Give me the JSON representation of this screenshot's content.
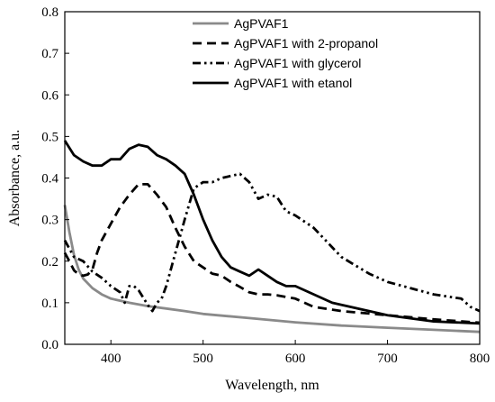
{
  "chart_data": {
    "type": "line",
    "title": "",
    "xlabel": "Wavelength, nm",
    "ylabel": "Absorbance, a.u.",
    "xlim": [
      350,
      800
    ],
    "ylim": [
      0.0,
      0.8
    ],
    "x_ticks": [
      400,
      500,
      600,
      700,
      800
    ],
    "y_ticks": [
      0.0,
      0.1,
      0.2,
      0.3,
      0.4,
      0.5,
      0.6,
      0.7,
      0.8
    ],
    "x_tick_labels": [
      "400",
      "500",
      "600",
      "700",
      "800"
    ],
    "y_tick_labels": [
      "0.0",
      "0.1",
      "0.2",
      "0.3",
      "0.4",
      "0.5",
      "0.6",
      "0.7",
      "0.8"
    ],
    "grid": false,
    "legend_position": "top-right",
    "series": [
      {
        "name": "AgPVAF1",
        "color": "#8a8a8a",
        "dash": "solid",
        "x": [
          350,
          355,
          360,
          365,
          370,
          380,
          390,
          400,
          420,
          440,
          460,
          480,
          500,
          550,
          600,
          650,
          700,
          750,
          800
        ],
        "y": [
          0.335,
          0.27,
          0.215,
          0.18,
          0.158,
          0.135,
          0.12,
          0.11,
          0.1,
          0.092,
          0.086,
          0.08,
          0.073,
          0.063,
          0.053,
          0.045,
          0.04,
          0.035,
          0.03
        ]
      },
      {
        "name": "AgPVAF1 with  2-propanol",
        "color": "#000000",
        "dash": "dash",
        "x": [
          350,
          355,
          360,
          365,
          370,
          375,
          380,
          385,
          390,
          400,
          410,
          420,
          430,
          440,
          450,
          460,
          470,
          480,
          490,
          500,
          510,
          520,
          530,
          540,
          550,
          560,
          570,
          580,
          600,
          620,
          650,
          700,
          750,
          800
        ],
        "y": [
          0.22,
          0.2,
          0.178,
          0.168,
          0.165,
          0.168,
          0.18,
          0.22,
          0.25,
          0.29,
          0.33,
          0.36,
          0.385,
          0.385,
          0.36,
          0.33,
          0.28,
          0.235,
          0.2,
          0.185,
          0.17,
          0.165,
          0.15,
          0.138,
          0.125,
          0.12,
          0.12,
          0.118,
          0.11,
          0.09,
          0.08,
          0.07,
          0.06,
          0.052
        ]
      },
      {
        "name": "AgPVAF1 with glycerol",
        "color": "#000000",
        "dash": "dashdotdot",
        "x": [
          350,
          355,
          360,
          370,
          380,
          390,
          400,
          410,
          415,
          420,
          425,
          430,
          440,
          445,
          450,
          455,
          460,
          465,
          470,
          480,
          490,
          500,
          510,
          520,
          530,
          540,
          550,
          560,
          570,
          580,
          590,
          600,
          620,
          650,
          680,
          700,
          750,
          780,
          790,
          800
        ],
        "y": [
          0.25,
          0.23,
          0.21,
          0.2,
          0.175,
          0.16,
          0.14,
          0.125,
          0.1,
          0.14,
          0.14,
          0.13,
          0.095,
          0.08,
          0.1,
          0.11,
          0.14,
          0.18,
          0.22,
          0.3,
          0.375,
          0.39,
          0.39,
          0.4,
          0.405,
          0.41,
          0.39,
          0.35,
          0.36,
          0.355,
          0.32,
          0.31,
          0.28,
          0.21,
          0.17,
          0.15,
          0.12,
          0.11,
          0.09,
          0.08
        ]
      },
      {
        "name": "AgPVAF1 with etanol",
        "color": "#000000",
        "dash": "solid",
        "x": [
          350,
          360,
          370,
          380,
          390,
          400,
          410,
          420,
          430,
          440,
          450,
          460,
          470,
          480,
          490,
          500,
          510,
          520,
          530,
          540,
          550,
          560,
          570,
          580,
          590,
          600,
          620,
          640,
          660,
          700,
          750,
          800
        ],
        "y": [
          0.49,
          0.455,
          0.44,
          0.43,
          0.43,
          0.445,
          0.445,
          0.47,
          0.48,
          0.475,
          0.455,
          0.445,
          0.43,
          0.41,
          0.36,
          0.3,
          0.25,
          0.21,
          0.185,
          0.175,
          0.165,
          0.18,
          0.165,
          0.15,
          0.14,
          0.14,
          0.12,
          0.1,
          0.09,
          0.07,
          0.055,
          0.05
        ]
      }
    ]
  }
}
